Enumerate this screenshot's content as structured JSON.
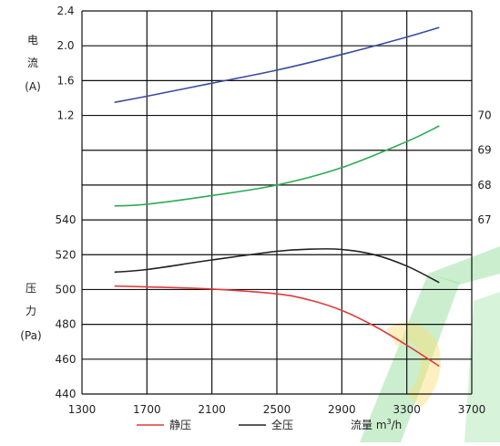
{
  "chart_data": {
    "type": "line",
    "x_ticks": [
      1300,
      1700,
      2100,
      2500,
      2900,
      3300,
      3700
    ],
    "xlim": [
      1300,
      3700
    ],
    "grid": true,
    "current_axis": {
      "label_chars": [
        "电",
        "流",
        "(A)"
      ],
      "ticks": [
        "2.4",
        "2.0",
        "1.6",
        "1.2"
      ],
      "ylim": [
        1.2,
        2.4
      ]
    },
    "efficiency_axis": {
      "ticks": [
        "70",
        "69",
        "68",
        "67"
      ],
      "ylim": [
        67,
        70
      ]
    },
    "pressure_axis": {
      "label_chars": [
        "压",
        "力",
        "(Pa)"
      ],
      "ticks": [
        "540",
        "520",
        "500",
        "480",
        "460",
        "440"
      ],
      "ylim": [
        440,
        540
      ]
    },
    "series": [
      {
        "id": "current",
        "axis": "current",
        "color": "#3b4a9e",
        "x": [
          1500,
          1700,
          2100,
          2500,
          2900,
          3300,
          3500
        ],
        "y": [
          1.35,
          1.42,
          1.57,
          1.72,
          1.9,
          2.1,
          2.21
        ]
      },
      {
        "id": "efficiency",
        "axis": "efficiency",
        "color": "#2eaa55",
        "x": [
          1500,
          1700,
          2100,
          2500,
          2900,
          3300,
          3500
        ],
        "y": [
          67.4,
          67.45,
          67.7,
          68.0,
          68.5,
          69.25,
          69.7
        ]
      },
      {
        "id": "total_pressure",
        "name": "全压",
        "axis": "pressure",
        "color": "#222222",
        "x": [
          1500,
          1700,
          2100,
          2500,
          2700,
          2900,
          3100,
          3300,
          3500
        ],
        "y": [
          510,
          511.5,
          517,
          522,
          523.2,
          523,
          520,
          513.5,
          504
        ]
      },
      {
        "id": "static_pressure",
        "name": "静压",
        "axis": "pressure",
        "color": "#e03a3a",
        "x": [
          1500,
          1700,
          2100,
          2500,
          2700,
          2900,
          3100,
          3300,
          3500
        ],
        "y": [
          502,
          501.5,
          500.3,
          497.5,
          494,
          488,
          479,
          468,
          456
        ]
      }
    ],
    "legend": {
      "items": [
        {
          "label": "静压",
          "color": "#e03a3a"
        },
        {
          "label": "全压",
          "color": "#222222"
        }
      ],
      "flow_label": "流量 m",
      "flow_sup": "3",
      "flow_suffix": "/h"
    },
    "watermark_color": "#2fbf3a"
  }
}
